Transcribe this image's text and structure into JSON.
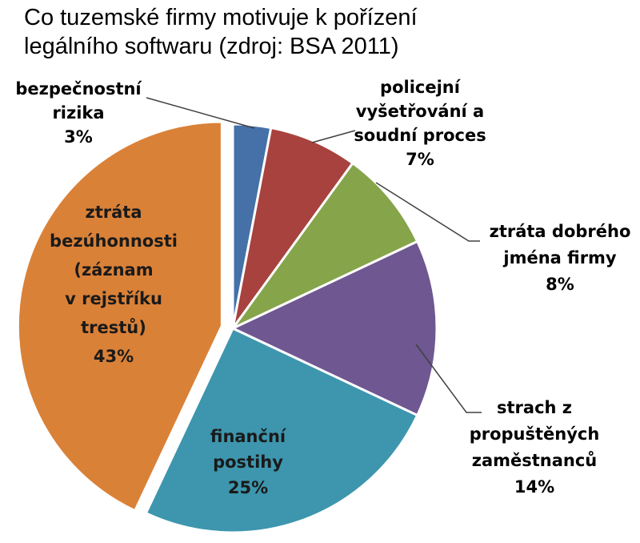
{
  "chart_data": {
    "type": "pie",
    "title": "Co tuzemské firmy motivuje k pořízení legálního softwaru (zdroj: BSA 2011)",
    "title_lines": [
      "Co tuzemské firmy motivuje k pořízení",
      "legálního softwaru (zdroj: BSA 2011)"
    ],
    "start_angle_deg": 0,
    "direction": "clockwise",
    "slices": [
      {
        "label_lines": [
          "bezpečnostní",
          "rizika"
        ],
        "value": 3,
        "value_label": "3%",
        "color": "#4571a8",
        "label_position": "outside",
        "exploded": false
      },
      {
        "label_lines": [
          "policejní",
          "vyšetřování a",
          "soudní proces"
        ],
        "value": 7,
        "value_label": "7%",
        "color": "#a8423f",
        "label_position": "outside",
        "exploded": false
      },
      {
        "label_lines": [
          "ztráta dobrého",
          "jména firmy"
        ],
        "value": 8,
        "value_label": "8%",
        "color": "#86a44a",
        "label_position": "outside",
        "exploded": false
      },
      {
        "label_lines": [
          "strach z",
          "propuštěných",
          "zaměstnanců"
        ],
        "value": 14,
        "value_label": "14%",
        "color": "#6f5791",
        "label_position": "outside",
        "exploded": false
      },
      {
        "label_lines": [
          "finanční",
          "postihy"
        ],
        "value": 25,
        "value_label": "25%",
        "color": "#3d96ae",
        "label_position": "inside",
        "exploded": false
      },
      {
        "label_lines": [
          "ztráta",
          "bezúhonnosti",
          "(záznam",
          "v rejstříku",
          "trestů)"
        ],
        "value": 43,
        "value_label": "43%",
        "color": "#da8138",
        "label_position": "inside",
        "exploded": true
      }
    ],
    "legend": "none"
  }
}
